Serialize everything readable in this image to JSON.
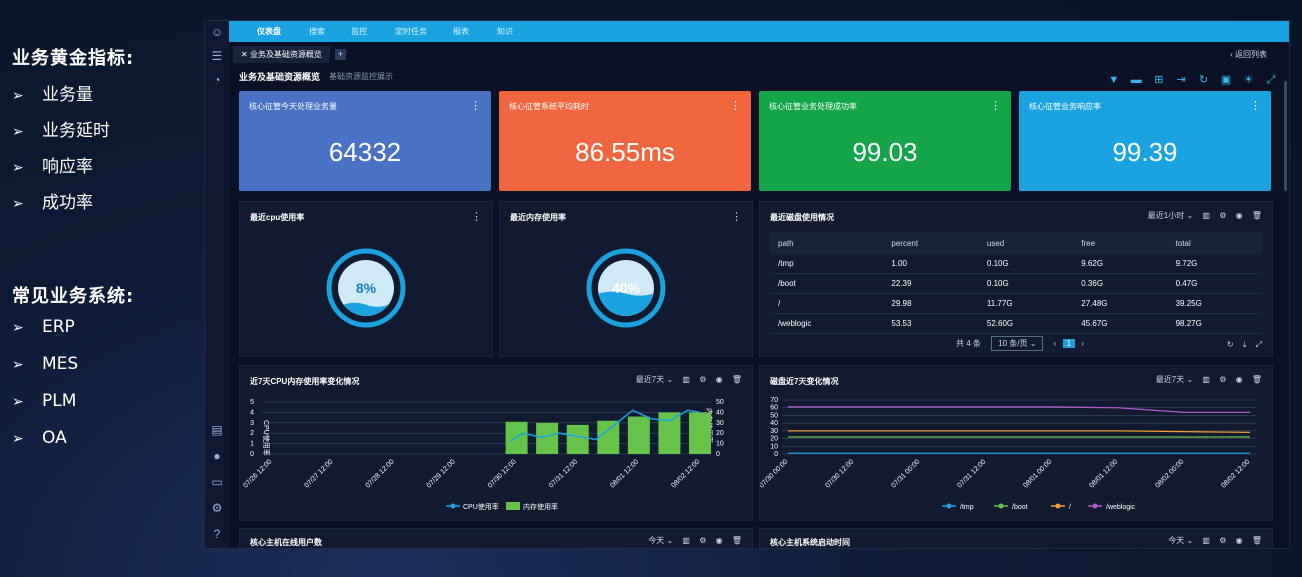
{
  "left": {
    "gold_title": "业务黄金指标:",
    "gold_items": [
      "业务量",
      "业务延时",
      "响应率",
      "成功率"
    ],
    "systems_title": "常见业务系统:",
    "systems_items": [
      "ERP",
      "MES",
      "PLM",
      "OA"
    ],
    "bullet_symbol": "➢"
  },
  "nav": {
    "items": [
      "仪表盘",
      "搜索",
      "监控",
      "定时任务",
      "报表",
      "知识"
    ],
    "active": "仪表盘"
  },
  "tabbar": {
    "tab_label": "业务及基础资源概览",
    "close": "✕",
    "add": "+",
    "back_label": "返回列表",
    "back_arrow": "‹"
  },
  "page": {
    "title": "业务及基础资源概览",
    "subtitle": "基础资源监控展示"
  },
  "colors": {
    "blue": "#4a72c4",
    "orange": "#f0673f",
    "green": "#14a54a",
    "cyan": "#1aa3e0",
    "accent": "#1aa3e0",
    "cpu_line": "#1aa3e0",
    "mem_bar": "#66c34a",
    "tmp": "#1aa3e0",
    "boot": "#66c34a",
    "root": "#f39c34",
    "weblogic": "#b05bc9"
  },
  "kpis": [
    {
      "title": "核心征管今天处理业务量",
      "value": "64332",
      "color": "#4a72c4"
    },
    {
      "title": "核心征管系统平均耗时",
      "value": "86.55ms",
      "color": "#f0673f"
    },
    {
      "title": "核心征管业务处理成功率",
      "value": "99.03",
      "color": "#14a54a"
    },
    {
      "title": "核心征管业务响应率",
      "value": "99.39",
      "color": "#1aa3e0"
    }
  ],
  "gauges": {
    "cpu": {
      "title": "最近cpu使用率",
      "value_label": "8%",
      "value": 0.08
    },
    "mem": {
      "title": "最近内存使用率",
      "value_label": "40%",
      "value": 0.4
    }
  },
  "disk": {
    "title": "最近磁盘使用情况",
    "range": "最近1小时",
    "columns": [
      "path",
      "percent",
      "used",
      "free",
      "total"
    ],
    "rows": [
      [
        "/tmp",
        "1.00",
        "0.10G",
        "9.62G",
        "9.72G"
      ],
      [
        "/boot",
        "22.39",
        "0.10G",
        "0.36G",
        "0.47G"
      ],
      [
        "/",
        "29.98",
        "11.77G",
        "27.48G",
        "39.25G"
      ],
      [
        "/weblogic",
        "53.53",
        "52.60G",
        "45.67G",
        "98.27G"
      ]
    ],
    "total_label": "共 4 条",
    "page_size": "10 条/页",
    "page": "1"
  },
  "chart_cpu_mem": {
    "title": "近7天CPU内存使用率变化情况",
    "range": "最近7天",
    "legend": [
      "CPU使用率",
      "内存使用率"
    ]
  },
  "chart_disk": {
    "title": "磁盘近7天变化情况",
    "range": "最近7天",
    "legend": [
      "/tmp",
      "/boot",
      "/",
      "/weblogic"
    ]
  },
  "bottom": {
    "left_title": "核心主机在线用户数",
    "right_title": "核心主机系统启动时间",
    "range": "今天"
  },
  "chart_data": [
    {
      "type": "bar",
      "title": "近7天CPU内存使用率变化情况",
      "categories": [
        "07/26 12:00",
        "07/27 12:00",
        "07/28 12:00",
        "07/29 12:00",
        "07/30 12:00",
        "07/31 12:00",
        "08/01 12:00",
        "08/02 12:00"
      ],
      "ylabel_left": "CPU使用率",
      "ylabel_right": "内存使用率",
      "ylim_left": [
        0,
        5
      ],
      "ylim_right": [
        0,
        50
      ],
      "series": [
        {
          "name": "内存使用率",
          "type": "bar",
          "axis": "right",
          "x": [
            4.0,
            4.5,
            5.0,
            5.5,
            6.0,
            6.5,
            7.0
          ],
          "values": [
            31,
            30,
            28,
            32,
            36,
            40,
            40
          ]
        },
        {
          "name": "CPU使用率",
          "type": "line",
          "axis": "left",
          "x": [
            3.9,
            4.1,
            4.4,
            4.7,
            5.0,
            5.3,
            5.6,
            5.9,
            6.2,
            6.5,
            6.8,
            7.0
          ],
          "values": [
            1.2,
            2.0,
            1.6,
            2.0,
            1.7,
            1.4,
            2.8,
            4.2,
            3.4,
            3.2,
            4.2,
            4.0
          ]
        }
      ],
      "grid": true,
      "legend_position": "bottom"
    },
    {
      "type": "line",
      "title": "磁盘近7天变化情况",
      "categories": [
        "07/30 00:00",
        "07/30 12:00",
        "07/31 00:00",
        "07/31 12:00",
        "08/01 00:00",
        "08/01 12:00",
        "08/02 00:00",
        "08/02 12:00"
      ],
      "ylim": [
        0,
        70
      ],
      "series": [
        {
          "name": "/tmp",
          "values": [
            1,
            1,
            1,
            1,
            1,
            1,
            1,
            1
          ]
        },
        {
          "name": "/boot",
          "values": [
            22,
            22,
            22,
            22,
            22,
            22,
            22,
            22
          ]
        },
        {
          "name": "/",
          "values": [
            30,
            30,
            30,
            30,
            30,
            30,
            29,
            28
          ]
        },
        {
          "name": "/weblogic",
          "values": [
            61,
            61,
            61,
            61,
            61,
            60,
            54,
            54
          ]
        }
      ],
      "grid": true,
      "legend_position": "bottom"
    }
  ]
}
